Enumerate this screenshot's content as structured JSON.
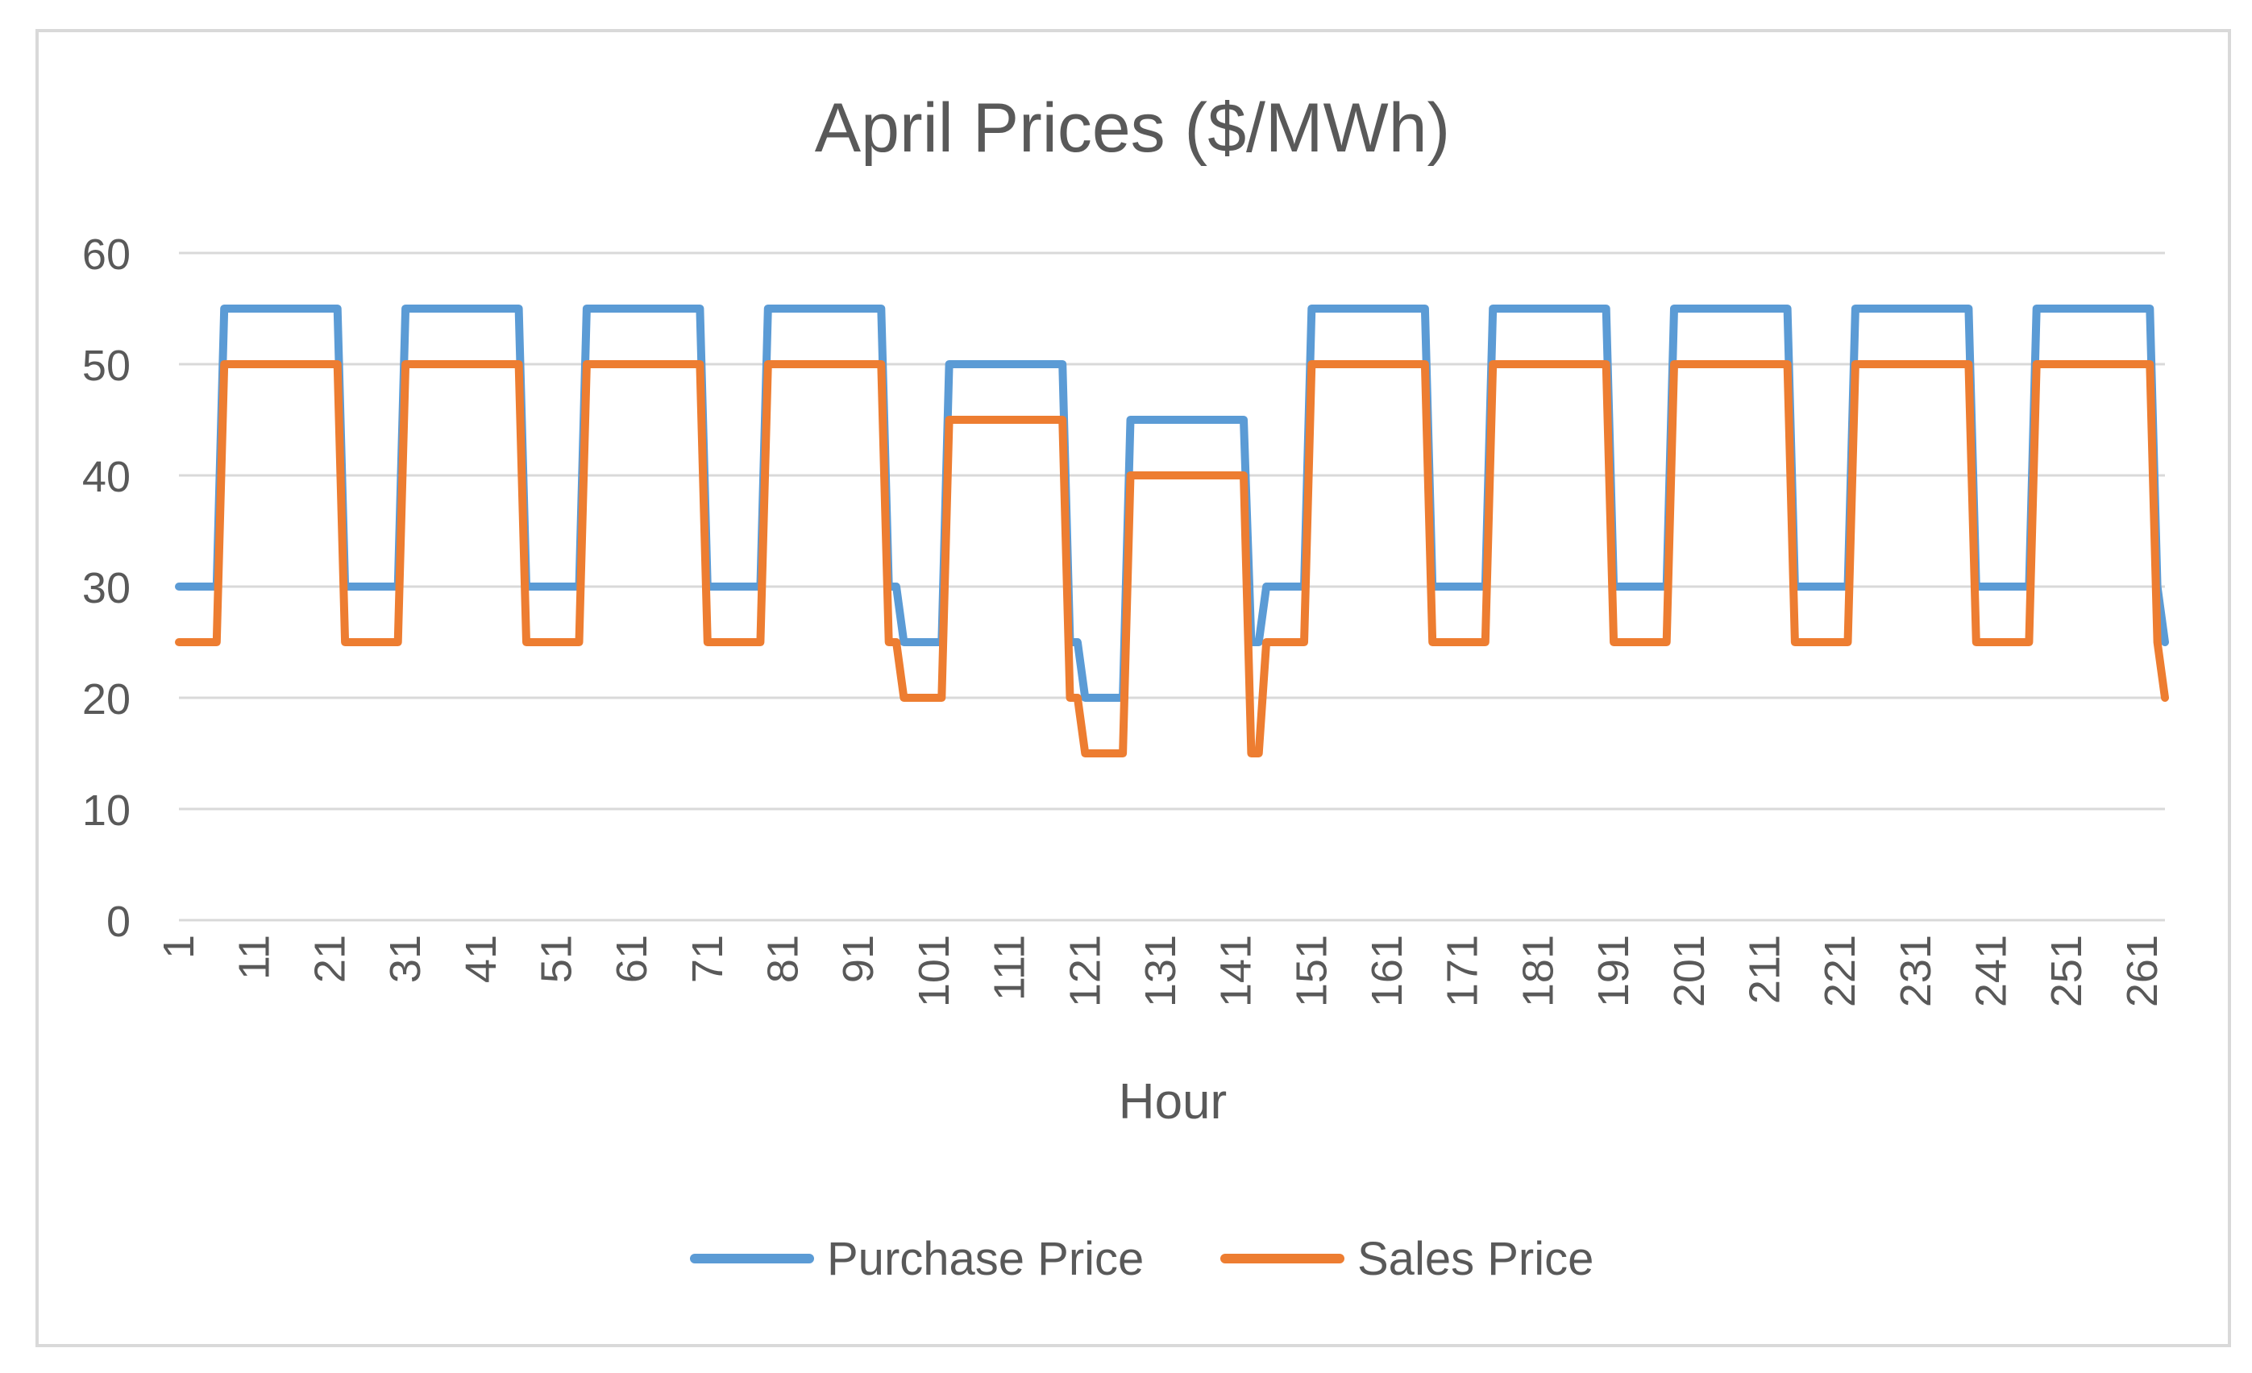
{
  "chart_data": {
    "type": "line",
    "title": "April Prices ($/MWh)",
    "xlabel": "Hour",
    "ylabel": "",
    "ylim": [
      0,
      60
    ],
    "yticks": [
      0,
      10,
      20,
      30,
      40,
      50,
      60
    ],
    "x_range": [
      1,
      264
    ],
    "xticks": [
      1,
      11,
      21,
      31,
      41,
      51,
      61,
      71,
      81,
      91,
      101,
      111,
      121,
      131,
      141,
      151,
      161,
      171,
      181,
      191,
      201,
      211,
      221,
      231,
      241,
      251,
      261
    ],
    "grid": "horizontal",
    "legend_position": "bottom",
    "series": [
      {
        "name": "Purchase Price",
        "color": "#5b9bd5",
        "segments": [
          [
            1,
            6,
            30
          ],
          [
            7,
            22,
            55
          ],
          [
            23,
            30,
            30
          ],
          [
            31,
            46,
            55
          ],
          [
            47,
            54,
            30
          ],
          [
            55,
            70,
            55
          ],
          [
            71,
            78,
            30
          ],
          [
            79,
            94,
            55
          ],
          [
            95,
            96,
            30
          ],
          [
            97,
            102,
            25
          ],
          [
            103,
            118,
            50
          ],
          [
            119,
            120,
            25
          ],
          [
            121,
            126,
            20
          ],
          [
            127,
            142,
            45
          ],
          [
            143,
            144,
            25
          ],
          [
            145,
            150,
            30
          ],
          [
            151,
            166,
            55
          ],
          [
            167,
            174,
            30
          ],
          [
            175,
            190,
            55
          ],
          [
            191,
            198,
            30
          ],
          [
            199,
            214,
            55
          ],
          [
            215,
            222,
            30
          ],
          [
            223,
            238,
            55
          ],
          [
            239,
            246,
            30
          ],
          [
            247,
            262,
            55
          ],
          [
            263,
            263,
            30
          ],
          [
            264,
            264,
            25
          ]
        ]
      },
      {
        "name": "Sales Price",
        "color": "#ed7d31",
        "segments": [
          [
            1,
            6,
            25
          ],
          [
            7,
            22,
            50
          ],
          [
            23,
            30,
            25
          ],
          [
            31,
            46,
            50
          ],
          [
            47,
            54,
            25
          ],
          [
            55,
            70,
            50
          ],
          [
            71,
            78,
            25
          ],
          [
            79,
            94,
            50
          ],
          [
            95,
            96,
            25
          ],
          [
            97,
            102,
            20
          ],
          [
            103,
            118,
            45
          ],
          [
            119,
            120,
            20
          ],
          [
            121,
            126,
            15
          ],
          [
            127,
            142,
            40
          ],
          [
            143,
            144,
            15
          ],
          [
            145,
            150,
            25
          ],
          [
            151,
            166,
            50
          ],
          [
            167,
            174,
            25
          ],
          [
            175,
            190,
            50
          ],
          [
            191,
            198,
            25
          ],
          [
            199,
            214,
            50
          ],
          [
            215,
            222,
            25
          ],
          [
            223,
            238,
            50
          ],
          [
            239,
            246,
            25
          ],
          [
            247,
            262,
            50
          ],
          [
            263,
            263,
            25
          ],
          [
            264,
            264,
            20
          ]
        ]
      }
    ]
  }
}
